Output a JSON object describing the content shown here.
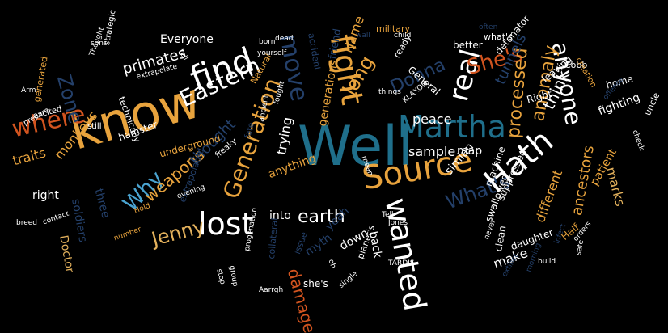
{
  "palette": {
    "background": "#000000",
    "white": "#ffffff",
    "teal": "#1f6f8b",
    "orange": "#e8a33d",
    "red": "#d2541f",
    "navy": "#24406a",
    "lightblue": "#4aa3d0",
    "tan": "#e3b15c"
  },
  "words": [
    {
      "text": "Well",
      "color": "teal"
    },
    {
      "text": "know",
      "color": "orange"
    },
    {
      "text": "Martha",
      "color": "teal"
    },
    {
      "text": "Hath",
      "color": "white"
    },
    {
      "text": "Source",
      "color": "orange"
    },
    {
      "text": "fight",
      "color": "orange"
    },
    {
      "text": "find",
      "color": "white"
    },
    {
      "text": "where",
      "color": "red"
    },
    {
      "text": "lost",
      "color": "white"
    },
    {
      "text": "wanted",
      "color": "white"
    },
    {
      "text": "Generation",
      "color": "orange"
    },
    {
      "text": "Eastern",
      "color": "white"
    },
    {
      "text": "move",
      "color": "navy"
    },
    {
      "text": "real",
      "color": "white"
    },
    {
      "text": "anyone",
      "color": "white"
    },
    {
      "text": "long",
      "color": "orange"
    },
    {
      "text": "Donna",
      "color": "navy"
    },
    {
      "text": "She's",
      "color": "red"
    },
    {
      "text": "earth",
      "color": "white"
    },
    {
      "text": "What's",
      "color": "navy"
    },
    {
      "text": "Jenny",
      "color": "tan"
    },
    {
      "text": "Why",
      "color": "lightblue"
    },
    {
      "text": "weapons",
      "color": "orange"
    },
    {
      "text": "processed",
      "color": "orange"
    },
    {
      "text": "anomaly",
      "color": "orange"
    },
    {
      "text": "think",
      "color": "white"
    },
    {
      "text": "primates",
      "color": "white"
    },
    {
      "text": "Zone",
      "color": "navy"
    },
    {
      "text": "thought",
      "color": "navy"
    },
    {
      "text": "trying",
      "color": "white"
    },
    {
      "text": "damage",
      "color": "red"
    },
    {
      "text": "sample",
      "color": "white"
    },
    {
      "text": "map",
      "color": "white"
    },
    {
      "text": "peace",
      "color": "white"
    },
    {
      "text": "tunnels",
      "color": "navy"
    },
    {
      "text": "make",
      "color": "white"
    },
    {
      "text": "marks",
      "color": "tan"
    },
    {
      "text": "ancestors",
      "color": "orange"
    },
    {
      "text": "different",
      "color": "orange"
    },
    {
      "text": "patient",
      "color": "orange"
    },
    {
      "text": "fighting",
      "color": "white"
    },
    {
      "text": "Name",
      "color": "orange"
    },
    {
      "text": "generations",
      "color": "orange"
    },
    {
      "text": "traits",
      "color": "orange"
    },
    {
      "text": "monkeys",
      "color": "orange"
    },
    {
      "text": "right",
      "color": "white"
    },
    {
      "text": "Doctor",
      "color": "tan"
    },
    {
      "text": "soldiers",
      "color": "navy"
    },
    {
      "text": "three",
      "color": "navy"
    },
    {
      "text": "underground",
      "color": "orange"
    },
    {
      "text": "Everyone",
      "color": "white"
    },
    {
      "text": "anything",
      "color": "orange"
    },
    {
      "text": "into",
      "color": "white"
    },
    {
      "text": "back",
      "color": "white"
    },
    {
      "text": "down",
      "color": "white"
    },
    {
      "text": "yeah",
      "color": "navy"
    },
    {
      "text": "myth",
      "color": "navy"
    },
    {
      "text": "she's",
      "color": "white"
    },
    {
      "text": "simian",
      "color": "white"
    },
    {
      "text": "machine",
      "color": "white"
    },
    {
      "text": "swallowed",
      "color": "white"
    },
    {
      "text": "daughter",
      "color": "white"
    },
    {
      "text": "better",
      "color": "white"
    },
    {
      "text": "General",
      "color": "white"
    },
    {
      "text": "detonator",
      "color": "white"
    },
    {
      "text": "Right",
      "color": "white"
    },
    {
      "text": "home",
      "color": "white"
    },
    {
      "text": "leaving",
      "color": "white"
    },
    {
      "text": "suppressed",
      "color": "white"
    },
    {
      "text": "Half",
      "color": "orange"
    },
    {
      "text": "uncle",
      "color": "white"
    },
    {
      "text": "military",
      "color": "orange"
    },
    {
      "text": "friend",
      "color": "navy"
    },
    {
      "text": "ready",
      "color": "white"
    },
    {
      "text": "what's",
      "color": "white"
    },
    {
      "text": "Cobb",
      "color": "white"
    },
    {
      "text": "creation",
      "color": "orange"
    },
    {
      "text": "Natural",
      "color": "orange"
    },
    {
      "text": "hamster",
      "color": "white"
    },
    {
      "text": "technically",
      "color": "white"
    },
    {
      "text": "extrapolated",
      "color": "navy"
    },
    {
      "text": "collateral",
      "color": "navy"
    },
    {
      "text": "issue",
      "color": "navy"
    },
    {
      "text": "planet's",
      "color": "white"
    },
    {
      "text": "generated",
      "color": "orange"
    },
    {
      "text": "excited",
      "color": "white"
    },
    {
      "text": "strategic",
      "color": "white"
    },
    {
      "text": "extrapolate",
      "color": "white"
    },
    {
      "text": "Jones",
      "color": "white"
    },
    {
      "text": "TARDIS",
      "color": "white"
    },
    {
      "text": "Aarrgh",
      "color": "white"
    },
    {
      "text": "never",
      "color": "white"
    },
    {
      "text": "clean",
      "color": "white"
    },
    {
      "text": "build",
      "color": "white"
    },
    {
      "text": "safe",
      "color": "white"
    },
    {
      "text": "check",
      "color": "white"
    },
    {
      "text": "Tell",
      "color": "white"
    },
    {
      "text": "Hold",
      "color": "orange"
    },
    {
      "text": "freaky",
      "color": "white"
    },
    {
      "text": "progenation",
      "color": "white"
    },
    {
      "text": "single",
      "color": "white"
    },
    {
      "text": "ancient",
      "color": "white"
    },
    {
      "text": "fought",
      "color": "white"
    },
    {
      "text": "KLAXON",
      "color": "white"
    },
    {
      "text": "things",
      "color": "white"
    },
    {
      "text": "child",
      "color": "white"
    },
    {
      "text": "born",
      "color": "white"
    },
    {
      "text": "dead",
      "color": "white"
    },
    {
      "text": "yourself",
      "color": "white"
    },
    {
      "text": "Thought",
      "color": "white"
    },
    {
      "text": "sons",
      "color": "white"
    },
    {
      "text": "prepare",
      "color": "white"
    },
    {
      "text": "breed",
      "color": "white"
    },
    {
      "text": "contact",
      "color": "white"
    },
    {
      "text": "Arm",
      "color": "white"
    },
    {
      "text": "still",
      "color": "white"
    },
    {
      "text": "evening",
      "color": "white"
    },
    {
      "text": "fate",
      "color": "navy"
    },
    {
      "text": "offence",
      "color": "navy"
    },
    {
      "text": "often",
      "color": "navy"
    },
    {
      "text": "mean",
      "color": "white"
    },
    {
      "text": "oh",
      "color": "white"
    },
    {
      "text": "number",
      "color": "orange"
    },
    {
      "text": "stop",
      "color": "white"
    },
    {
      "text": "group",
      "color": "white"
    },
    {
      "text": "accident",
      "color": "navy"
    },
    {
      "text": "orders",
      "color": "white"
    },
    {
      "text": "infect",
      "color": "navy"
    },
    {
      "text": "extinct",
      "color": "navy"
    },
    {
      "text": "morning",
      "color": "navy"
    },
    {
      "text": "tell",
      "color": "white"
    },
    {
      "text": "wall",
      "color": "navy"
    }
  ]
}
